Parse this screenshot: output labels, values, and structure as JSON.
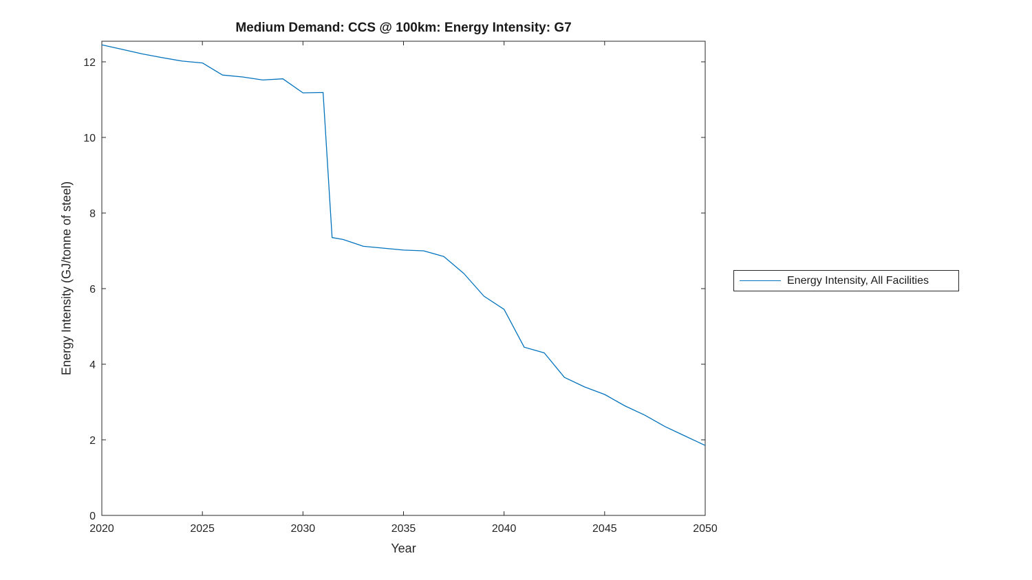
{
  "chart_data": {
    "type": "line",
    "title": "Medium Demand: CCS @ 100km: Energy Intensity: G7",
    "xlabel": "Year",
    "ylabel": "Energy Intensity (GJ/tonne of steel)",
    "xlim": [
      2020,
      2050
    ],
    "ylim": [
      0,
      12.545
    ],
    "x_ticks": [
      2020,
      2025,
      2030,
      2035,
      2040,
      2045,
      2050
    ],
    "y_ticks": [
      0,
      2,
      4,
      6,
      8,
      10,
      12
    ],
    "grid": false,
    "axis_color": "#262626",
    "line_color": "#0072BD",
    "legend": {
      "position": "right-outside",
      "entries": [
        "Energy Intensity, All Facilities"
      ]
    },
    "series": [
      {
        "name": "Energy Intensity, All Facilities",
        "x": [
          2020,
          2021,
          2022,
          2023,
          2024,
          2025,
          2026,
          2027,
          2028,
          2029,
          2030,
          2031,
          2031.45,
          2032,
          2033,
          2034,
          2035,
          2036,
          2037,
          2038,
          2039,
          2040,
          2041,
          2042,
          2043,
          2044,
          2045,
          2046,
          2047,
          2048,
          2049,
          2050
        ],
        "y": [
          12.45,
          12.33,
          12.21,
          12.11,
          12.02,
          11.97,
          11.65,
          11.6,
          11.52,
          11.55,
          11.18,
          11.19,
          7.35,
          7.3,
          7.12,
          7.07,
          7.02,
          7.0,
          6.85,
          6.4,
          5.8,
          5.45,
          4.45,
          4.3,
          3.65,
          3.4,
          3.2,
          2.9,
          2.65,
          2.35,
          2.1,
          1.85
        ]
      }
    ]
  }
}
